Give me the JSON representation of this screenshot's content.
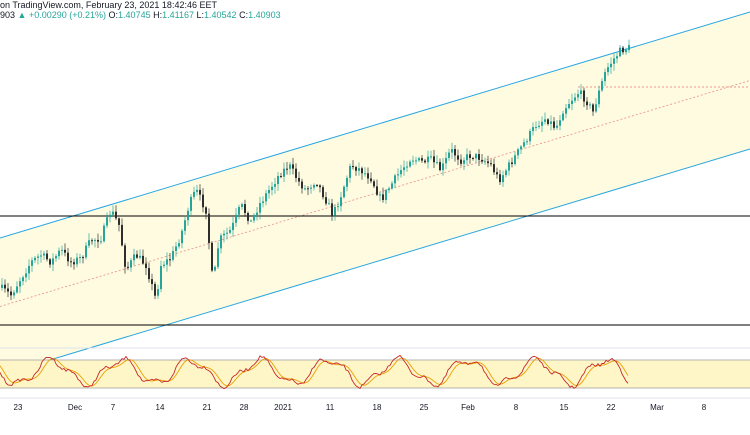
{
  "header": {
    "line1": "on TradingView.com, February 23, 2021 18:42:46 EET",
    "line2_prefix": "903",
    "change": "▲ +0.00290 (+0.21%)",
    "o_label": "O:",
    "o_value": "1.40745",
    "h_label": "H:",
    "h_value": "1.41167",
    "l_label": "L:",
    "l_value": "1.40542",
    "c_label": "C:",
    "c_value": "1.40903"
  },
  "colors": {
    "up_candle": "#26a69a",
    "down_candle": "#2e2e2e",
    "channel_fill": "#fffbe0",
    "channel_line": "#2aa6e0",
    "midline": "#e57373",
    "support_line": "#000000",
    "stoch_k": "#c62828",
    "stoch_d": "#e8a000",
    "stoch_band": "#fff6c8"
  },
  "chart_data": {
    "type": "candlestick",
    "instrument_close": 1.40903,
    "x_axis": {
      "tick_labels": [
        "23",
        "Dec",
        "7",
        "14",
        "21",
        "28",
        "2021",
        "11",
        "18",
        "25",
        "Feb",
        "8",
        "15",
        "22",
        "Mar",
        "8"
      ]
    },
    "channel": {
      "description": "ascending parallel channel with dashed midline"
    },
    "horizontal_levels": [
      "upper support",
      "lower support",
      "latest price dotted"
    ],
    "oscillator": {
      "type": "stochastic",
      "overbought_band": [
        20,
        80
      ]
    }
  }
}
